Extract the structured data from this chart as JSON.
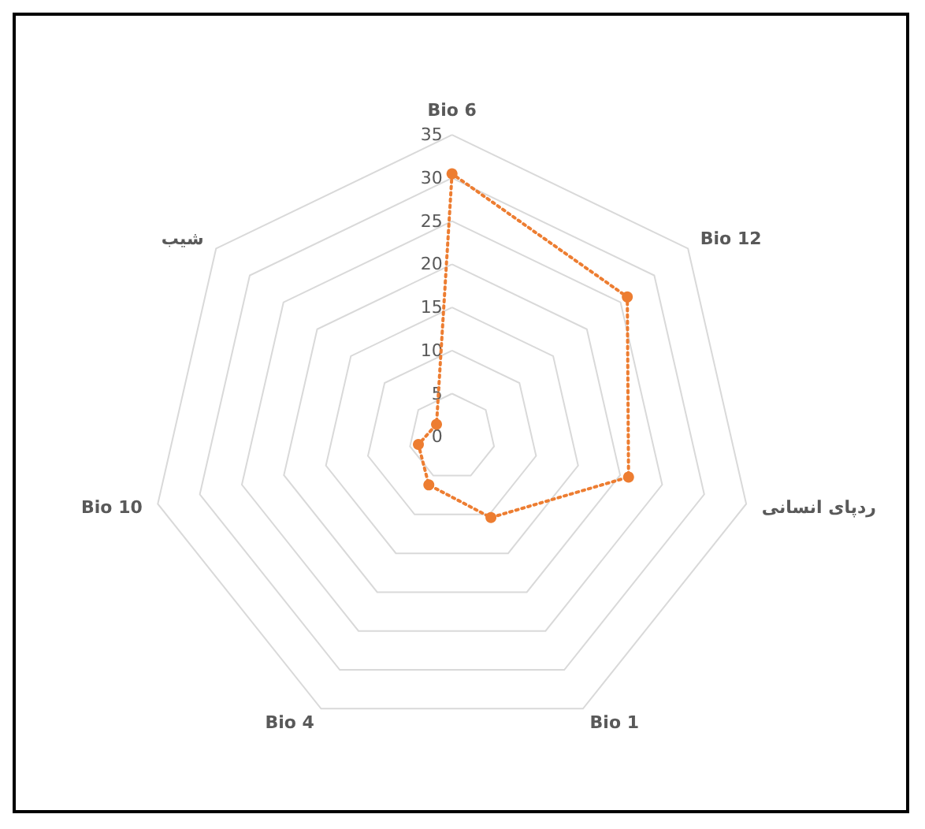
{
  "chart_data": {
    "type": "radar",
    "categories": [
      "Bio 6",
      "Bio 12",
      "ردپای انسانی",
      "Bio 1",
      "Bio 4",
      "Bio 10",
      "شیب"
    ],
    "series": [
      {
        "color": "#ed7d31",
        "values": [
          30.5,
          26,
          21,
          10.4,
          6.2,
          4,
          2.3
        ]
      }
    ],
    "ylim": [
      0,
      35
    ],
    "yticks": [
      0,
      5,
      10,
      15,
      20,
      25,
      30,
      35
    ],
    "grid": true,
    "marker": "circle",
    "line_style": "dotted"
  }
}
